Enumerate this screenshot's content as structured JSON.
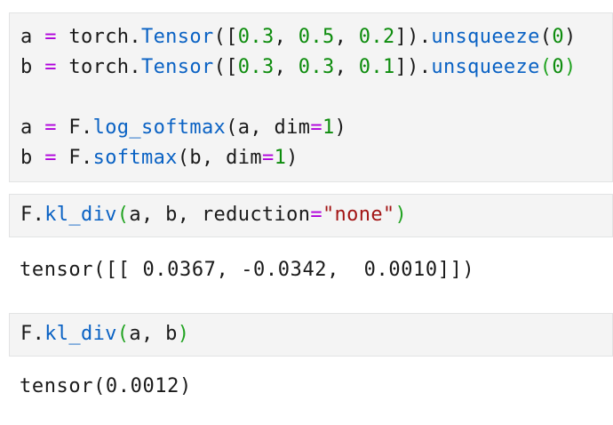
{
  "colors": {
    "page_bg": "#ffffff",
    "code_block_bg": "#f4f4f4",
    "code_block_border": "#e2e3e4",
    "plain": "#1a1a1a",
    "operator": "#af00db",
    "function": "#0a62c4",
    "number": "#0d8c0d",
    "bracket": "#21a321",
    "string": "#a31515",
    "output_text": "#1a1a1a"
  },
  "blocks": [
    {
      "kind": "code",
      "name": "code-block-setup",
      "lines": [
        [
          {
            "t": "a ",
            "c": "plain"
          },
          {
            "t": "=",
            "c": "op"
          },
          {
            "t": " torch.",
            "c": "plain"
          },
          {
            "t": "Tensor",
            "c": "fn"
          },
          {
            "t": "([",
            "c": "plain"
          },
          {
            "t": "0.3",
            "c": "num"
          },
          {
            "t": ", ",
            "c": "plain"
          },
          {
            "t": "0.5",
            "c": "num"
          },
          {
            "t": ", ",
            "c": "plain"
          },
          {
            "t": "0.2",
            "c": "num"
          },
          {
            "t": "]).",
            "c": "plain"
          },
          {
            "t": "unsqueeze",
            "c": "fn"
          },
          {
            "t": "(",
            "c": "plain"
          },
          {
            "t": "0",
            "c": "num"
          },
          {
            "t": ")",
            "c": "plain"
          }
        ],
        [
          {
            "t": "b ",
            "c": "plain"
          },
          {
            "t": "=",
            "c": "op"
          },
          {
            "t": " torch.",
            "c": "plain"
          },
          {
            "t": "Tensor",
            "c": "fn"
          },
          {
            "t": "([",
            "c": "plain"
          },
          {
            "t": "0.3",
            "c": "num"
          },
          {
            "t": ", ",
            "c": "plain"
          },
          {
            "t": "0.3",
            "c": "num"
          },
          {
            "t": ", ",
            "c": "plain"
          },
          {
            "t": "0.1",
            "c": "num"
          },
          {
            "t": "]).",
            "c": "plain"
          },
          {
            "t": "unsqueeze",
            "c": "fn"
          },
          {
            "t": "(",
            "c": "brk"
          },
          {
            "t": "0",
            "c": "num"
          },
          {
            "t": ")",
            "c": "brk"
          }
        ],
        [],
        [
          {
            "t": "a ",
            "c": "plain"
          },
          {
            "t": "=",
            "c": "op"
          },
          {
            "t": " F.",
            "c": "plain"
          },
          {
            "t": "log_softmax",
            "c": "fn"
          },
          {
            "t": "(a, dim",
            "c": "plain"
          },
          {
            "t": "=",
            "c": "op"
          },
          {
            "t": "1",
            "c": "num"
          },
          {
            "t": ")",
            "c": "plain"
          }
        ],
        [
          {
            "t": "b ",
            "c": "plain"
          },
          {
            "t": "=",
            "c": "op"
          },
          {
            "t": " F.",
            "c": "plain"
          },
          {
            "t": "softmax",
            "c": "fn"
          },
          {
            "t": "(b, dim",
            "c": "plain"
          },
          {
            "t": "=",
            "c": "op"
          },
          {
            "t": "1",
            "c": "num"
          },
          {
            "t": ")",
            "c": "plain"
          }
        ]
      ]
    },
    {
      "kind": "code",
      "name": "code-block-kl-div-none",
      "lines": [
        [
          {
            "t": "F.",
            "c": "plain"
          },
          {
            "t": "kl_div",
            "c": "fn"
          },
          {
            "t": "(",
            "c": "brk"
          },
          {
            "t": "a, b, reduction",
            "c": "plain"
          },
          {
            "t": "=",
            "c": "op"
          },
          {
            "t": "\"none\"",
            "c": "str"
          },
          {
            "t": ")",
            "c": "brk"
          }
        ]
      ]
    },
    {
      "kind": "output",
      "name": "output-kl-div-none",
      "text": "tensor([[ 0.0367, -0.0342,  0.0010]])"
    },
    {
      "kind": "code",
      "name": "code-block-kl-div-default",
      "lines": [
        [
          {
            "t": "F.",
            "c": "plain"
          },
          {
            "t": "kl_div",
            "c": "fn"
          },
          {
            "t": "(",
            "c": "brk"
          },
          {
            "t": "a, b",
            "c": "plain"
          },
          {
            "t": ")",
            "c": "brk"
          }
        ]
      ]
    },
    {
      "kind": "output",
      "name": "output-kl-div-default",
      "text": "tensor(0.0012)"
    }
  ]
}
